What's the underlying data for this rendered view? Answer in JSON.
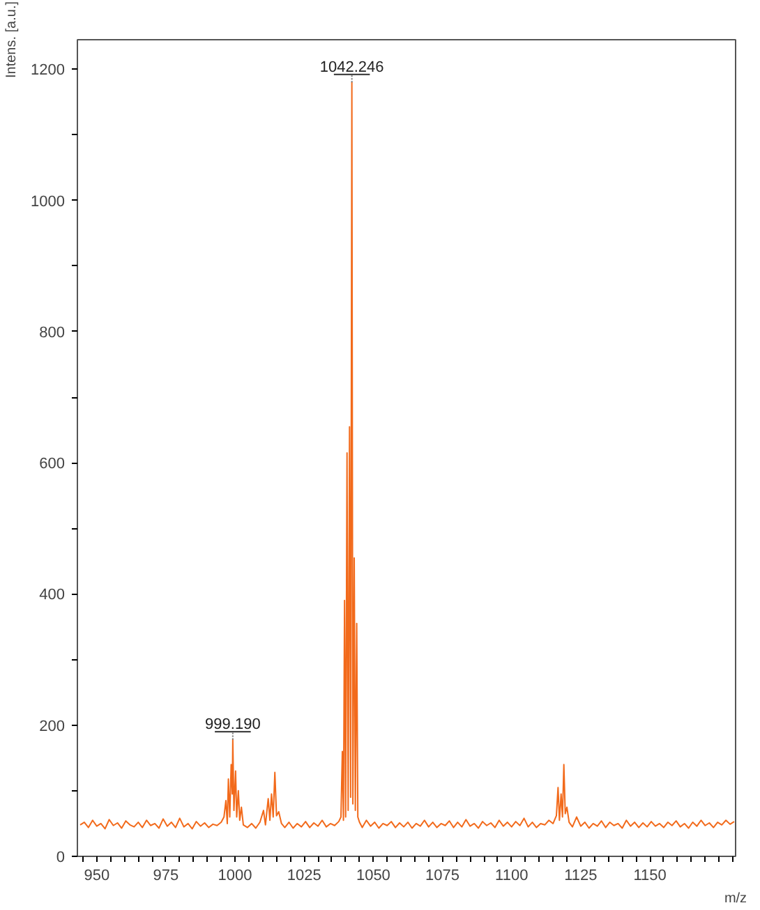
{
  "chart_data": {
    "type": "line",
    "xlabel": "m/z",
    "ylabel": "Intens. [a.u.]",
    "xlim": [
      943,
      1181
    ],
    "ylim": [
      0,
      1245
    ],
    "xticks": [
      {
        "value": 945,
        "label": null
      },
      950,
      {
        "value": 955,
        "label": null
      },
      {
        "value": 960,
        "label": null
      },
      {
        "value": 965,
        "label": null
      },
      {
        "value": 970,
        "label": null
      },
      975,
      {
        "value": 980,
        "label": null
      },
      {
        "value": 985,
        "label": null
      },
      {
        "value": 990,
        "label": null
      },
      {
        "value": 995,
        "label": null
      },
      1000,
      {
        "value": 1005,
        "label": null
      },
      {
        "value": 1010,
        "label": null
      },
      {
        "value": 1015,
        "label": null
      },
      {
        "value": 1020,
        "label": null
      },
      1025,
      {
        "value": 1030,
        "label": null
      },
      {
        "value": 1035,
        "label": null
      },
      {
        "value": 1040,
        "label": null
      },
      {
        "value": 1045,
        "label": null
      },
      1050,
      {
        "value": 1055,
        "label": null
      },
      {
        "value": 1060,
        "label": null
      },
      {
        "value": 1065,
        "label": null
      },
      {
        "value": 1070,
        "label": null
      },
      1075,
      {
        "value": 1080,
        "label": null
      },
      {
        "value": 1085,
        "label": null
      },
      {
        "value": 1090,
        "label": null
      },
      {
        "value": 1095,
        "label": null
      },
      1100,
      {
        "value": 1105,
        "label": null
      },
      {
        "value": 1110,
        "label": null
      },
      {
        "value": 1115,
        "label": null
      },
      {
        "value": 1120,
        "label": null
      },
      1125,
      {
        "value": 1130,
        "label": null
      },
      {
        "value": 1135,
        "label": null
      },
      {
        "value": 1140,
        "label": null
      },
      {
        "value": 1145,
        "label": null
      },
      1150,
      {
        "value": 1155,
        "label": null
      },
      {
        "value": 1160,
        "label": null
      },
      {
        "value": 1165,
        "label": null
      },
      {
        "value": 1170,
        "label": null
      },
      {
        "value": 1175,
        "label": null
      },
      {
        "value": 1180,
        "label": null
      }
    ],
    "yticks": [
      0,
      {
        "value": 100,
        "label": null
      },
      200,
      {
        "value": 300,
        "label": null
      },
      400,
      {
        "value": 500,
        "label": null
      },
      600,
      {
        "value": 700,
        "label": null
      },
      800,
      {
        "value": 900,
        "label": null
      },
      1000,
      {
        "value": 1100,
        "label": null
      },
      1200
    ],
    "grid": false,
    "marker": "none",
    "line_style": "solid",
    "annotations": [
      {
        "text": "999.190",
        "x": 999.19,
        "y": 178
      },
      {
        "text": "1042.246",
        "x": 1042.246,
        "y": 1180
      }
    ],
    "x": [
      944,
      945.5,
      947,
      948.5,
      950,
      951.5,
      953,
      954.5,
      956,
      957.5,
      959,
      960.5,
      962,
      963.5,
      965,
      966.5,
      968,
      969.5,
      971,
      972.5,
      974,
      975.5,
      977,
      978.5,
      980,
      981.5,
      983,
      984.5,
      986,
      987.5,
      989,
      990.5,
      992,
      993.5,
      995,
      996,
      996.7,
      997.2,
      997.6,
      998.1,
      998.6,
      999.0,
      999.19,
      999.6,
      1000.2,
      1000.6,
      1001.2,
      1001.7,
      1002.3,
      1003,
      1004.5,
      1006,
      1007.5,
      1009,
      1010.3,
      1011,
      1012,
      1012.6,
      1013.2,
      1013.8,
      1014.4,
      1015,
      1015.8,
      1016.8,
      1018,
      1019.5,
      1021,
      1022.5,
      1024,
      1025.5,
      1027,
      1028.5,
      1030,
      1031.5,
      1033,
      1034.5,
      1036,
      1037.5,
      1038.3,
      1038.8,
      1039.2,
      1039.6,
      1040,
      1040.5,
      1040.9,
      1041.4,
      1041.8,
      1042.246,
      1042.6,
      1043.1,
      1043.5,
      1044.0,
      1044.4,
      1045,
      1046,
      1047.5,
      1049,
      1050.5,
      1052,
      1053.5,
      1055,
      1056.5,
      1058,
      1059.5,
      1061,
      1062.5,
      1064,
      1065.5,
      1067,
      1068.5,
      1070,
      1071.5,
      1073,
      1074.5,
      1076,
      1077.5,
      1079,
      1080.5,
      1082,
      1083.5,
      1085,
      1086.5,
      1088,
      1089.5,
      1091,
      1092.5,
      1094,
      1095.5,
      1097,
      1098.5,
      1100,
      1101.5,
      1103,
      1104.5,
      1106,
      1107.5,
      1109,
      1110.5,
      1112,
      1113.5,
      1115,
      1116.2,
      1116.8,
      1117.3,
      1117.9,
      1118.4,
      1118.9,
      1119.4,
      1120,
      1120.8,
      1122,
      1123.5,
      1125,
      1126.5,
      1128,
      1129.5,
      1131,
      1132.5,
      1134,
      1135.5,
      1137,
      1138.5,
      1140,
      1141.5,
      1143,
      1144.5,
      1146,
      1147.5,
      1149,
      1150.5,
      1152,
      1153.5,
      1155,
      1156.5,
      1158,
      1159.5,
      1161,
      1162.5,
      1164,
      1165.5,
      1167,
      1168.5,
      1170,
      1171.5,
      1173,
      1174.5,
      1176,
      1177.5,
      1179,
      1180.5
    ],
    "series": [
      {
        "color": "#f26a1b",
        "values": [
          48,
          52,
          44,
          55,
          46,
          50,
          42,
          56,
          47,
          51,
          43,
          54,
          48,
          45,
          52,
          44,
          55,
          47,
          50,
          43,
          57,
          46,
          52,
          44,
          58,
          45,
          50,
          42,
          53,
          46,
          51,
          44,
          49,
          47,
          52,
          60,
          85,
          50,
          118,
          60,
          140,
          95,
          178,
          70,
          130,
          60,
          100,
          55,
          75,
          48,
          44,
          50,
          43,
          52,
          70,
          48,
          88,
          55,
          95,
          60,
          128,
          62,
          68,
          50,
          44,
          52,
          43,
          50,
          45,
          53,
          44,
          51,
          46,
          55,
          45,
          50,
          47,
          53,
          60,
          160,
          55,
          390,
          60,
          615,
          70,
          655,
          90,
          1180,
          80,
          455,
          70,
          355,
          60,
          52,
          44,
          55,
          46,
          52,
          43,
          50,
          47,
          53,
          44,
          51,
          45,
          52,
          43,
          50,
          46,
          55,
          45,
          52,
          44,
          50,
          47,
          54,
          44,
          52,
          45,
          56,
          46,
          50,
          43,
          53,
          47,
          51,
          44,
          55,
          46,
          52,
          45,
          53,
          47,
          58,
          45,
          52,
          44,
          50,
          48,
          55,
          50,
          62,
          105,
          55,
          95,
          60,
          140,
          65,
          75,
          52,
          45,
          60,
          46,
          52,
          43,
          50,
          46,
          54,
          44,
          52,
          47,
          50,
          43,
          55,
          46,
          52,
          44,
          51,
          45,
          53,
          46,
          50,
          44,
          52,
          47,
          54,
          45,
          50,
          43,
          52,
          46,
          55,
          47,
          51,
          44,
          52,
          48,
          55,
          49,
          53
        ]
      }
    ]
  }
}
